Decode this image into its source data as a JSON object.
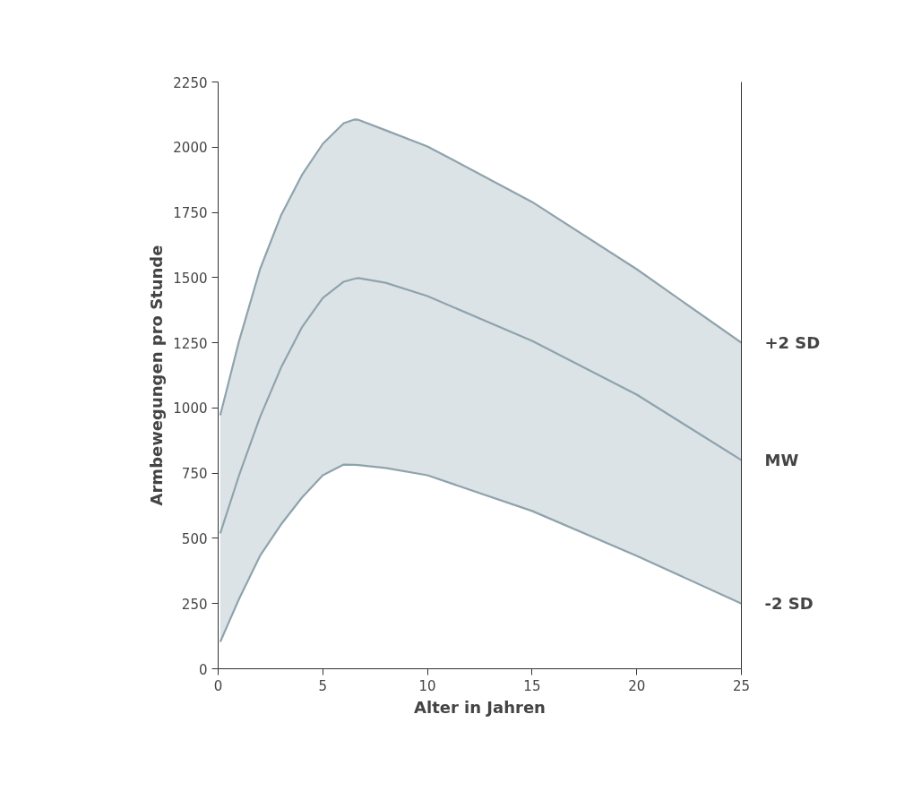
{
  "chart_data": {
    "type": "line",
    "xlabel": "Alter in Jahren",
    "ylabel": "Armbewegungen pro Stunde",
    "x": [
      0.1,
      1,
      2,
      3,
      4,
      5,
      6,
      6.5,
      6.7,
      8,
      10,
      15,
      20,
      25
    ],
    "series": [
      {
        "name": "+2 SD",
        "color": "#8fa3ad",
        "values": [
          972,
          1257,
          1532,
          1738,
          1893,
          2013,
          2092,
          2106,
          2105,
          2065,
          2003,
          1790,
          1532,
          1250
        ]
      },
      {
        "name": "MW",
        "color": "#8fa3ad",
        "values": [
          519,
          742,
          965,
          1154,
          1309,
          1422,
          1484,
          1495,
          1498,
          1480,
          1429,
          1257,
          1051,
          800
        ],
        "lower": [
          103,
          268,
          433,
          553,
          656,
          742,
          783,
          782,
          781,
          770,
          742,
          605,
          433,
          250
        ],
        "upper": [
          972,
          1257,
          1532,
          1738,
          1893,
          2013,
          2092,
          2106,
          2105,
          2065,
          2003,
          1790,
          1532,
          1250
        ]
      },
      {
        "name": "-2 SD",
        "color": "#8fa3ad",
        "values": [
          103,
          268,
          433,
          553,
          656,
          742,
          783,
          782,
          781,
          770,
          742,
          605,
          433,
          250
        ]
      }
    ],
    "xlim": [
      0,
      25
    ],
    "xticks": [
      0,
      5,
      10,
      15,
      20,
      25
    ],
    "ylim": [
      0,
      2250
    ],
    "yticks": [
      0,
      250,
      500,
      750,
      1000,
      1250,
      1500,
      1750,
      2000,
      2250
    ],
    "grid": false,
    "marker": "none",
    "line_style": "solid"
  }
}
